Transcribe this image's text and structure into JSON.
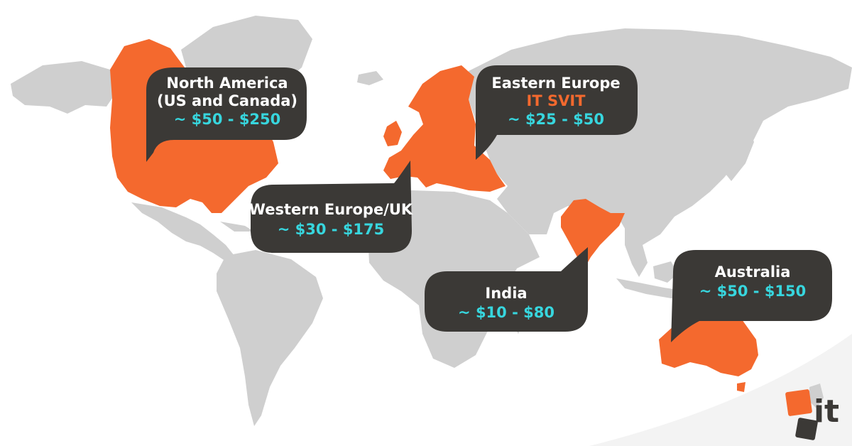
{
  "colors": {
    "land": "#cfcfcf",
    "highlight": "#f4692e",
    "bubble": "#3b3936",
    "label_text": "#ffffff",
    "rate_text": "#37d6de",
    "brand_text": "#f4692e"
  },
  "regions": [
    {
      "id": "north-america",
      "lines": [
        "North America",
        "(US and Canada)"
      ],
      "rate": "~ $50 - $250"
    },
    {
      "id": "eastern-europe",
      "lines": [
        "Eastern Europe"
      ],
      "brand": "IT SVIT",
      "rate": "~ $25 - $50"
    },
    {
      "id": "western-europe",
      "lines": [
        "Western Europe/UK"
      ],
      "rate": "~ $30 - $175"
    },
    {
      "id": "india",
      "lines": [
        "India"
      ],
      "rate": "~ $10 - $80"
    },
    {
      "id": "australia",
      "lines": [
        "Australia"
      ],
      "rate": "~ $50 - $150"
    }
  ],
  "logo": {
    "text": "it",
    "icon": "it-svit-logo"
  }
}
